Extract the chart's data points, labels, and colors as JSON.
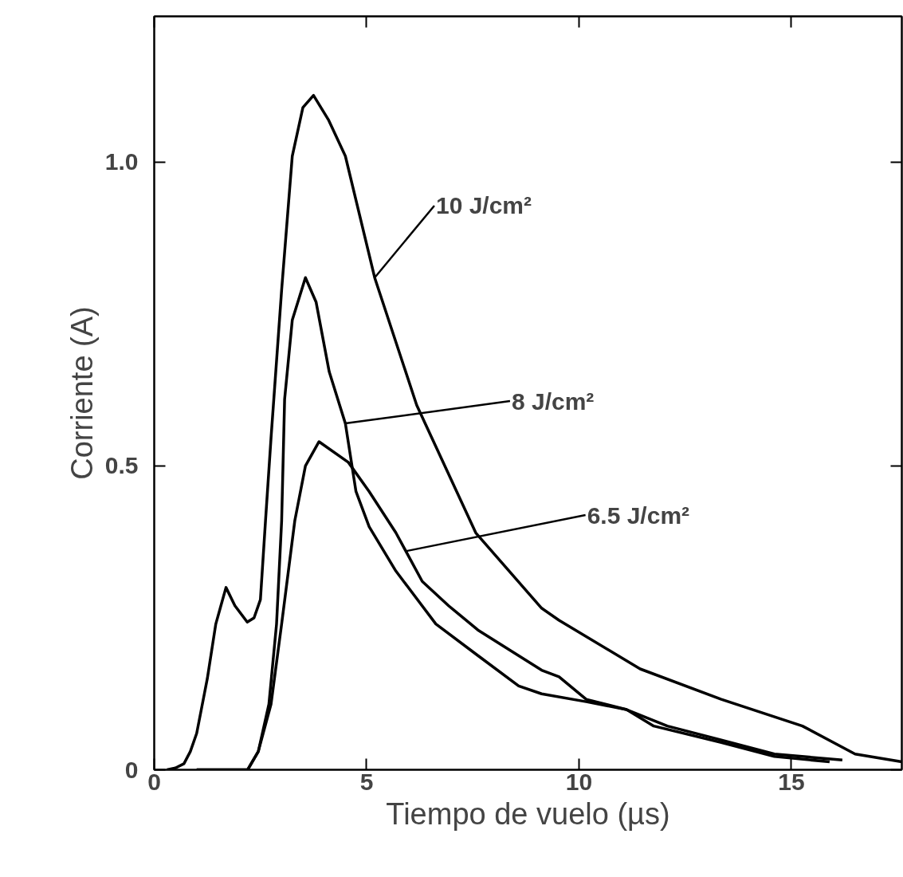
{
  "chart_data": {
    "type": "line",
    "xlabel": "Tiempo de vuelo (µs)",
    "ylabel": "Corriente (A)",
    "xlim": [
      0,
      17.6
    ],
    "ylim": [
      0,
      1.24
    ],
    "xticks": [
      0,
      5,
      10,
      15
    ],
    "yticks": [
      0,
      0.5,
      {
        "value": 1.0,
        "label": "1.0"
      }
    ],
    "grid": false,
    "marker": "none",
    "line_style": "solid",
    "series": [
      {
        "color": "#000000",
        "x": [
          0.3,
          0.5,
          0.7,
          0.85,
          1.0,
          1.25,
          1.45,
          1.69,
          1.9,
          2.19,
          2.35,
          2.5,
          2.62,
          2.75,
          3.0,
          3.25,
          3.5,
          3.75,
          4.1,
          4.5,
          5.19,
          6.18,
          7.57,
          9.12,
          9.53,
          11.44,
          13.35,
          15.26,
          16.5,
          17.6
        ],
        "values": [
          0,
          0.003,
          0.01,
          0.03,
          0.06,
          0.15,
          0.24,
          0.3,
          0.27,
          0.243,
          0.25,
          0.28,
          0.41,
          0.546,
          0.79,
          1.01,
          1.09,
          1.11,
          1.07,
          1.01,
          0.81,
          0.6,
          0.39,
          0.266,
          0.246,
          0.166,
          0.116,
          0.072,
          0.026,
          0.013
        ]
      },
      {
        "color": "#000000",
        "x": [
          1.0,
          2.2,
          2.45,
          2.7,
          2.88,
          3.0,
          3.07,
          3.25,
          3.56,
          3.81,
          4.12,
          4.5,
          4.75,
          5.06,
          5.69,
          6.63,
          7.62,
          8.58,
          9.12,
          10.17,
          11.12,
          12.08,
          13.35,
          14.6,
          16.2
        ],
        "values": [
          0,
          0,
          0.03,
          0.108,
          0.24,
          0.41,
          0.61,
          0.74,
          0.81,
          0.77,
          0.655,
          0.57,
          0.458,
          0.4,
          0.327,
          0.24,
          0.188,
          0.138,
          0.125,
          0.112,
          0.099,
          0.072,
          0.049,
          0.026,
          0.016
        ]
      },
      {
        "color": "#000000",
        "x": [
          1.0,
          2.2,
          2.45,
          2.75,
          3.0,
          3.31,
          3.56,
          3.88,
          4.57,
          5.06,
          5.69,
          6.31,
          6.93,
          7.62,
          9.12,
          9.53,
          10.17,
          11.12,
          11.76,
          13.35,
          14.6,
          15.9
        ],
        "values": [
          0,
          0,
          0.03,
          0.108,
          0.24,
          0.41,
          0.5,
          0.54,
          0.506,
          0.458,
          0.39,
          0.31,
          0.27,
          0.23,
          0.164,
          0.153,
          0.116,
          0.099,
          0.072,
          0.045,
          0.022,
          0.013
        ]
      }
    ],
    "annotations": [
      {
        "text": "10 J/cm²",
        "x": 5.19,
        "y": 0.81
      },
      {
        "text": "8 J/cm²",
        "x": 4.5,
        "y": 0.57
      },
      {
        "text": "6.5 J/cm²",
        "x": 5.94,
        "y": 0.36
      }
    ]
  }
}
